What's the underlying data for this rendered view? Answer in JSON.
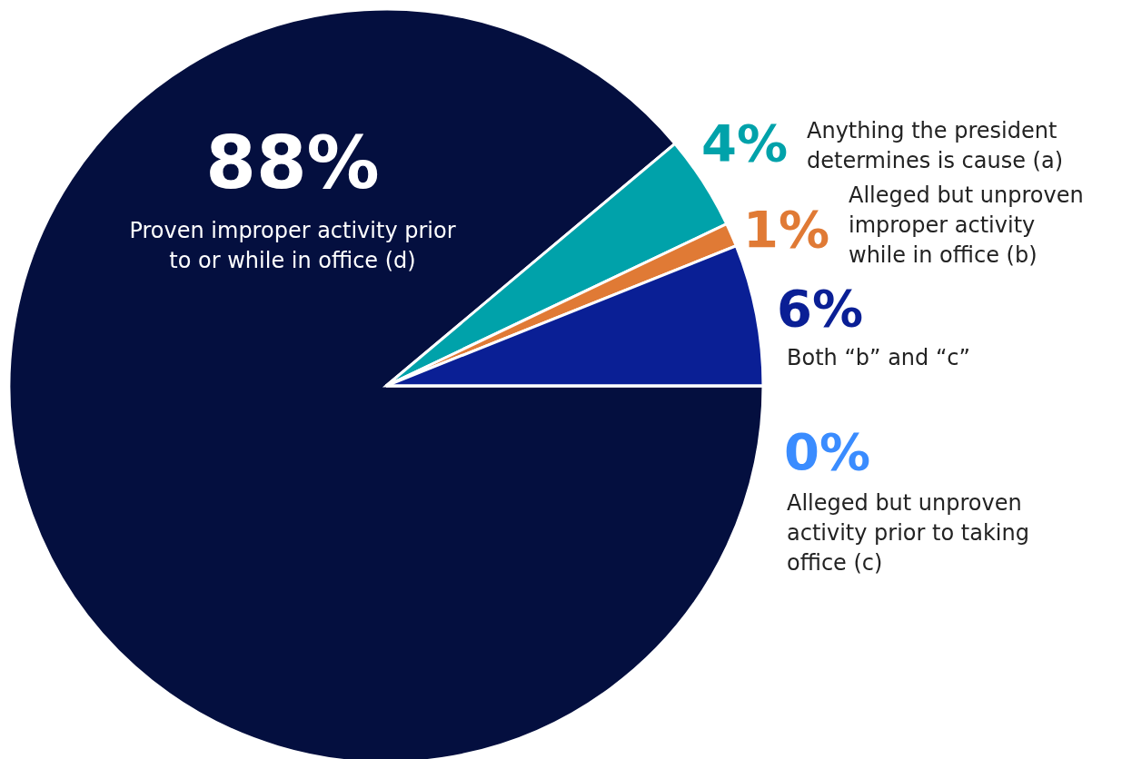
{
  "chart_data": {
    "type": "pie",
    "categories": [
      "Proven improper activity prior to or while in office (d)",
      "Anything the president determines is cause (a)",
      "Alleged but unproven improper activity while in office (b)",
      "Both “b” and “c”",
      "Alleged but unproven activity prior to taking office (c)"
    ],
    "values": [
      88,
      4,
      1,
      6,
      0
    ],
    "value_labels": [
      "88%",
      "4%",
      "1%",
      "6%",
      "0%"
    ],
    "colors": [
      "#040f3f",
      "#00a2aa",
      "#e07a35",
      "#0a1f95",
      "#3a8cff"
    ]
  }
}
